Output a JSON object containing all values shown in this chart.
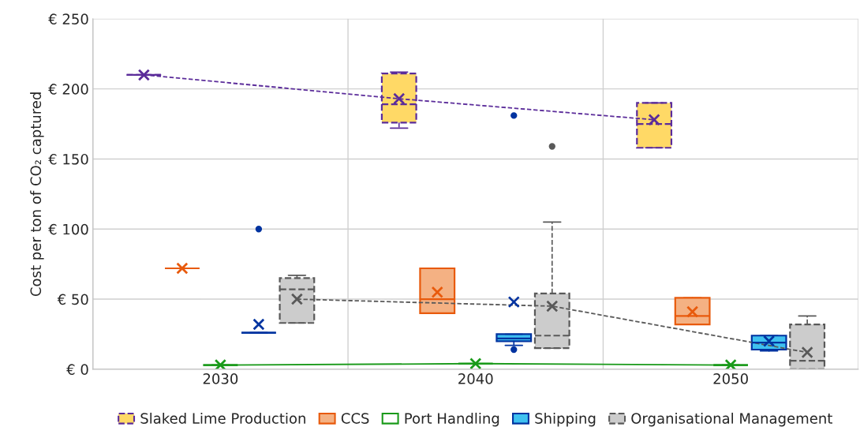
{
  "chart_data": {
    "type": "box",
    "ylabel": "Cost per ton of CO₂ captured",
    "categories": [
      "2030",
      "2040",
      "2050"
    ],
    "ylim": [
      0,
      250
    ],
    "yticks": [
      {
        "value": 0,
        "label": "€ 0"
      },
      {
        "value": 50,
        "label": "€ 50"
      },
      {
        "value": 100,
        "label": "€ 100"
      },
      {
        "value": 150,
        "label": "€ 150"
      },
      {
        "value": 200,
        "label": "€ 200"
      },
      {
        "value": 250,
        "label": "€ 250"
      }
    ],
    "grid": true,
    "legend": "bottom",
    "marker": "cross",
    "series": [
      {
        "name": "Slaked Lime Production",
        "color": "#5b2c9a",
        "colors": [
          "#5b2c9a",
          "#ffd966",
          "#ffd966"
        ],
        "line_style": "dashed",
        "boxes": [
          {
            "low": 210,
            "q1": 210,
            "median": 210,
            "q3": 210,
            "high": 210,
            "mean": 210
          },
          {
            "low": 172,
            "q1": 176,
            "median": 189,
            "q3": 211,
            "high": 212,
            "mean": 193
          },
          {
            "low": 158,
            "q1": 158,
            "median": 175,
            "q3": 190,
            "high": 190,
            "mean": 178
          }
        ]
      },
      {
        "name": "CCS",
        "color": "#e85a0c",
        "colors": [
          "#e85a0c",
          "#f4b183",
          "#f4b183"
        ],
        "boxes": [
          {
            "low": 72,
            "q1": 72,
            "median": 72,
            "q3": 72,
            "high": 72,
            "mean": 72
          },
          {
            "low": 40,
            "q1": 40,
            "median": 50,
            "q3": 72,
            "high": 72,
            "mean": 55
          },
          {
            "low": 32,
            "q1": 32,
            "median": 38,
            "q3": 51,
            "high": 51,
            "mean": 41
          }
        ]
      },
      {
        "name": "Port Handling",
        "color": "#1a9a1a",
        "colors": [
          "#1a9a1a",
          "#1a9a1a",
          "#1a9a1a"
        ],
        "boxes": [
          {
            "low": 3,
            "q1": 3,
            "median": 3,
            "q3": 3,
            "high": 3,
            "mean": 3
          },
          {
            "low": 4,
            "q1": 4,
            "median": 4,
            "q3": 4,
            "high": 4,
            "mean": 4
          },
          {
            "low": 3,
            "q1": 3,
            "median": 3,
            "q3": 3,
            "high": 3,
            "mean": 3
          }
        ]
      },
      {
        "name": "Shipping",
        "color": "#0033a0",
        "colors": [
          "#0033a0",
          "#3fc1f0",
          "#3fc1f0"
        ],
        "boxes": [
          {
            "low": 26,
            "q1": 26,
            "median": 26,
            "q3": 26,
            "high": 26,
            "mean": 32,
            "outliers": [
              100
            ]
          },
          {
            "low": 17,
            "q1": 20,
            "median": 22,
            "q3": 25,
            "high": 25,
            "mean": 48,
            "outliers": [
              14,
              181
            ]
          },
          {
            "low": 13,
            "q1": 14,
            "median": 19,
            "q3": 24,
            "high": 24,
            "mean": 20
          }
        ]
      },
      {
        "name": "Organisational Management",
        "color": "#595959",
        "colors": [
          "#cccccc",
          "#cccccc",
          "#cccccc"
        ],
        "line_style": "dashed",
        "boxes": [
          {
            "low": 33,
            "q1": 33,
            "median": 57,
            "q3": 65,
            "high": 67,
            "mean": 50
          },
          {
            "low": 15,
            "q1": 15,
            "median": 24,
            "q3": 54,
            "high": 105,
            "mean": 45,
            "outliers": [
              159
            ]
          },
          {
            "low": 0,
            "q1": 0,
            "median": 6,
            "q3": 32,
            "high": 38,
            "mean": 12
          }
        ]
      },
      {
        "type": "line",
        "color": "#5b2c9a",
        "line_style": "dashed",
        "marker": "none",
        "values": [
          210,
          193,
          178
        ]
      },
      {
        "type": "line",
        "color": "#1a9a1a",
        "line_style": "solid",
        "marker": "none",
        "values": [
          3,
          4,
          3
        ]
      },
      {
        "type": "line",
        "color": "#595959",
        "line_style": "dashed",
        "marker": "none",
        "values": [
          50,
          45,
          12
        ]
      }
    ]
  }
}
